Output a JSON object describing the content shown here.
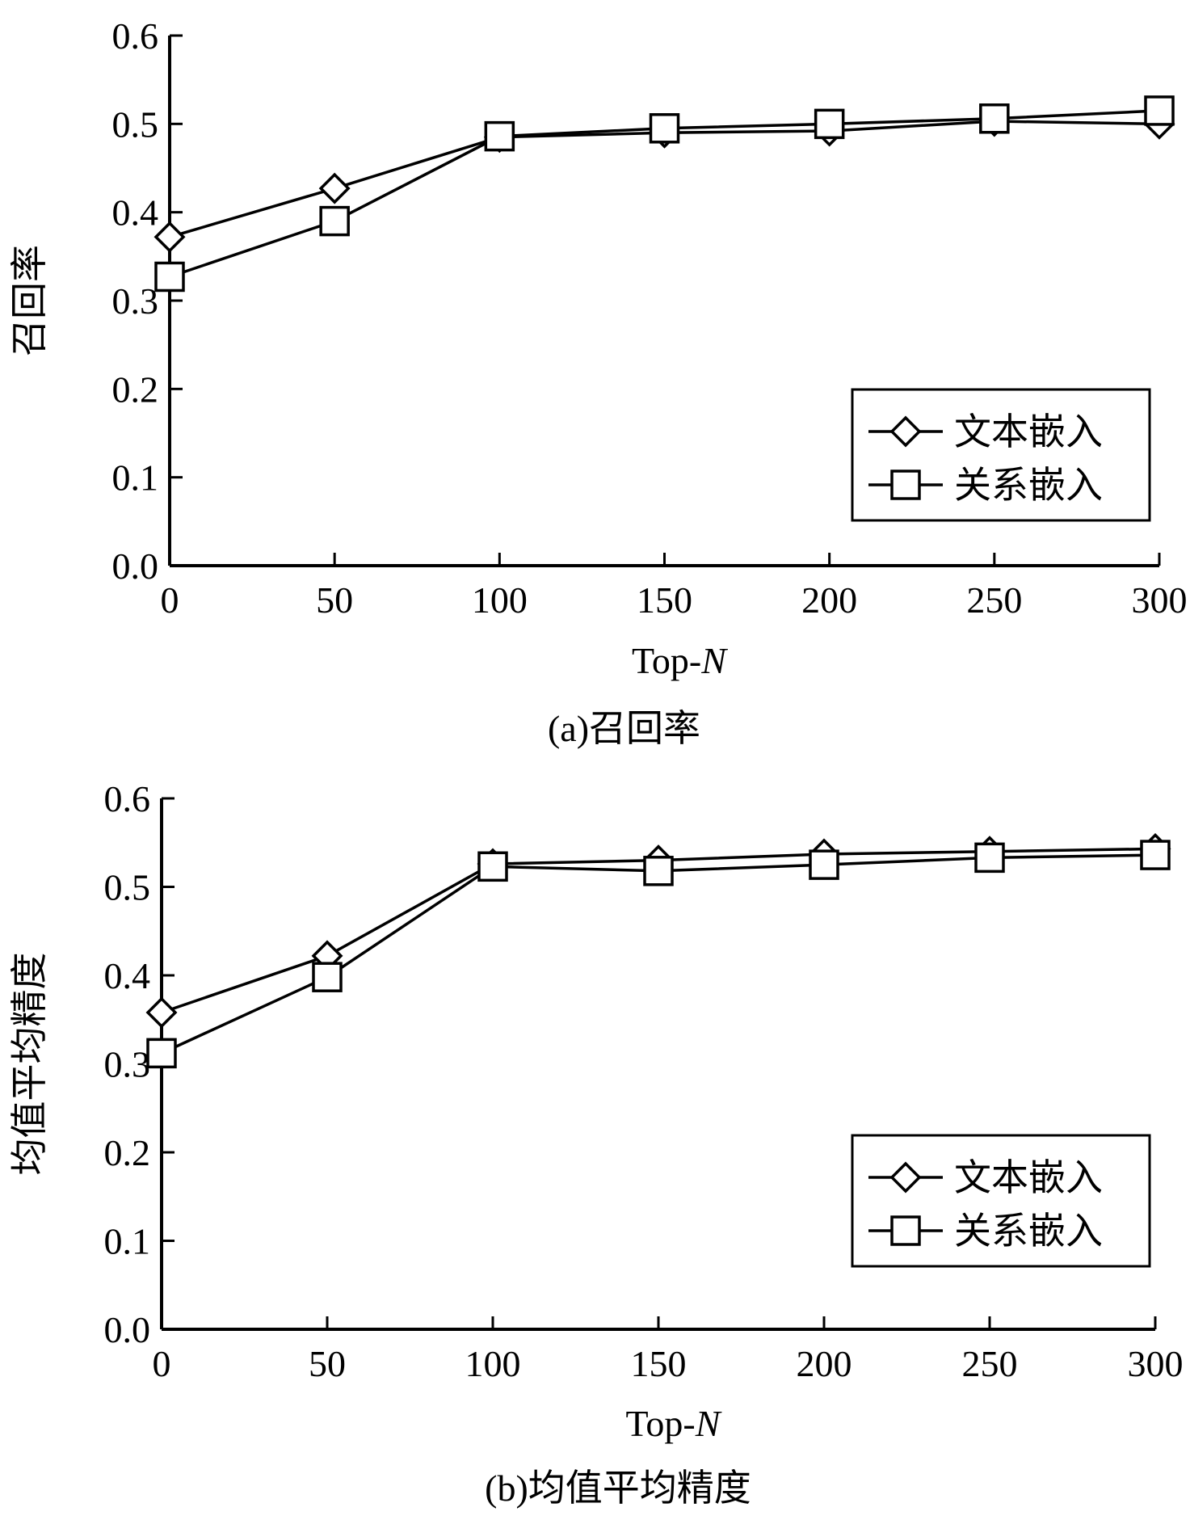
{
  "chart_data": [
    {
      "type": "line",
      "caption": "(a)召回率",
      "xlabel_main": "Top-",
      "xlabel_italic": "N",
      "ylabel": "召回率",
      "x": [
        0,
        50,
        100,
        150,
        200,
        250,
        300
      ],
      "xlim": [
        0,
        300
      ],
      "ylim": [
        0,
        0.6
      ],
      "xticks": [
        "0",
        "50",
        "100",
        "150",
        "200",
        "250",
        "300"
      ],
      "yticks": [
        "0.0",
        "0.1",
        "0.2",
        "0.3",
        "0.4",
        "0.5",
        "0.6"
      ],
      "legend_position": "bottom-right",
      "grid": false,
      "series": [
        {
          "name": "文本嵌入",
          "marker": "diamond",
          "values": [
            0.372,
            0.427,
            0.485,
            0.49,
            0.492,
            0.503,
            0.5
          ]
        },
        {
          "name": "关系嵌入",
          "marker": "square",
          "values": [
            0.327,
            0.39,
            0.486,
            0.495,
            0.5,
            0.506,
            0.515
          ]
        }
      ]
    },
    {
      "type": "line",
      "caption": "(b)均值平均精度",
      "xlabel_main": "Top-",
      "xlabel_italic": "N",
      "ylabel": "均值平均精度",
      "x": [
        0,
        50,
        100,
        150,
        200,
        250,
        300
      ],
      "xlim": [
        0,
        300
      ],
      "ylim": [
        0,
        0.6
      ],
      "xticks": [
        "0",
        "50",
        "100",
        "150",
        "200",
        "250",
        "300"
      ],
      "yticks": [
        "0.0",
        "0.1",
        "0.2",
        "0.3",
        "0.4",
        "0.5",
        "0.6"
      ],
      "legend_position": "bottom-right",
      "grid": false,
      "series": [
        {
          "name": "文本嵌入",
          "marker": "diamond",
          "values": [
            0.358,
            0.422,
            0.526,
            0.53,
            0.537,
            0.54,
            0.543
          ]
        },
        {
          "name": "关系嵌入",
          "marker": "square",
          "values": [
            0.312,
            0.398,
            0.523,
            0.518,
            0.525,
            0.533,
            0.536
          ]
        }
      ]
    }
  ]
}
